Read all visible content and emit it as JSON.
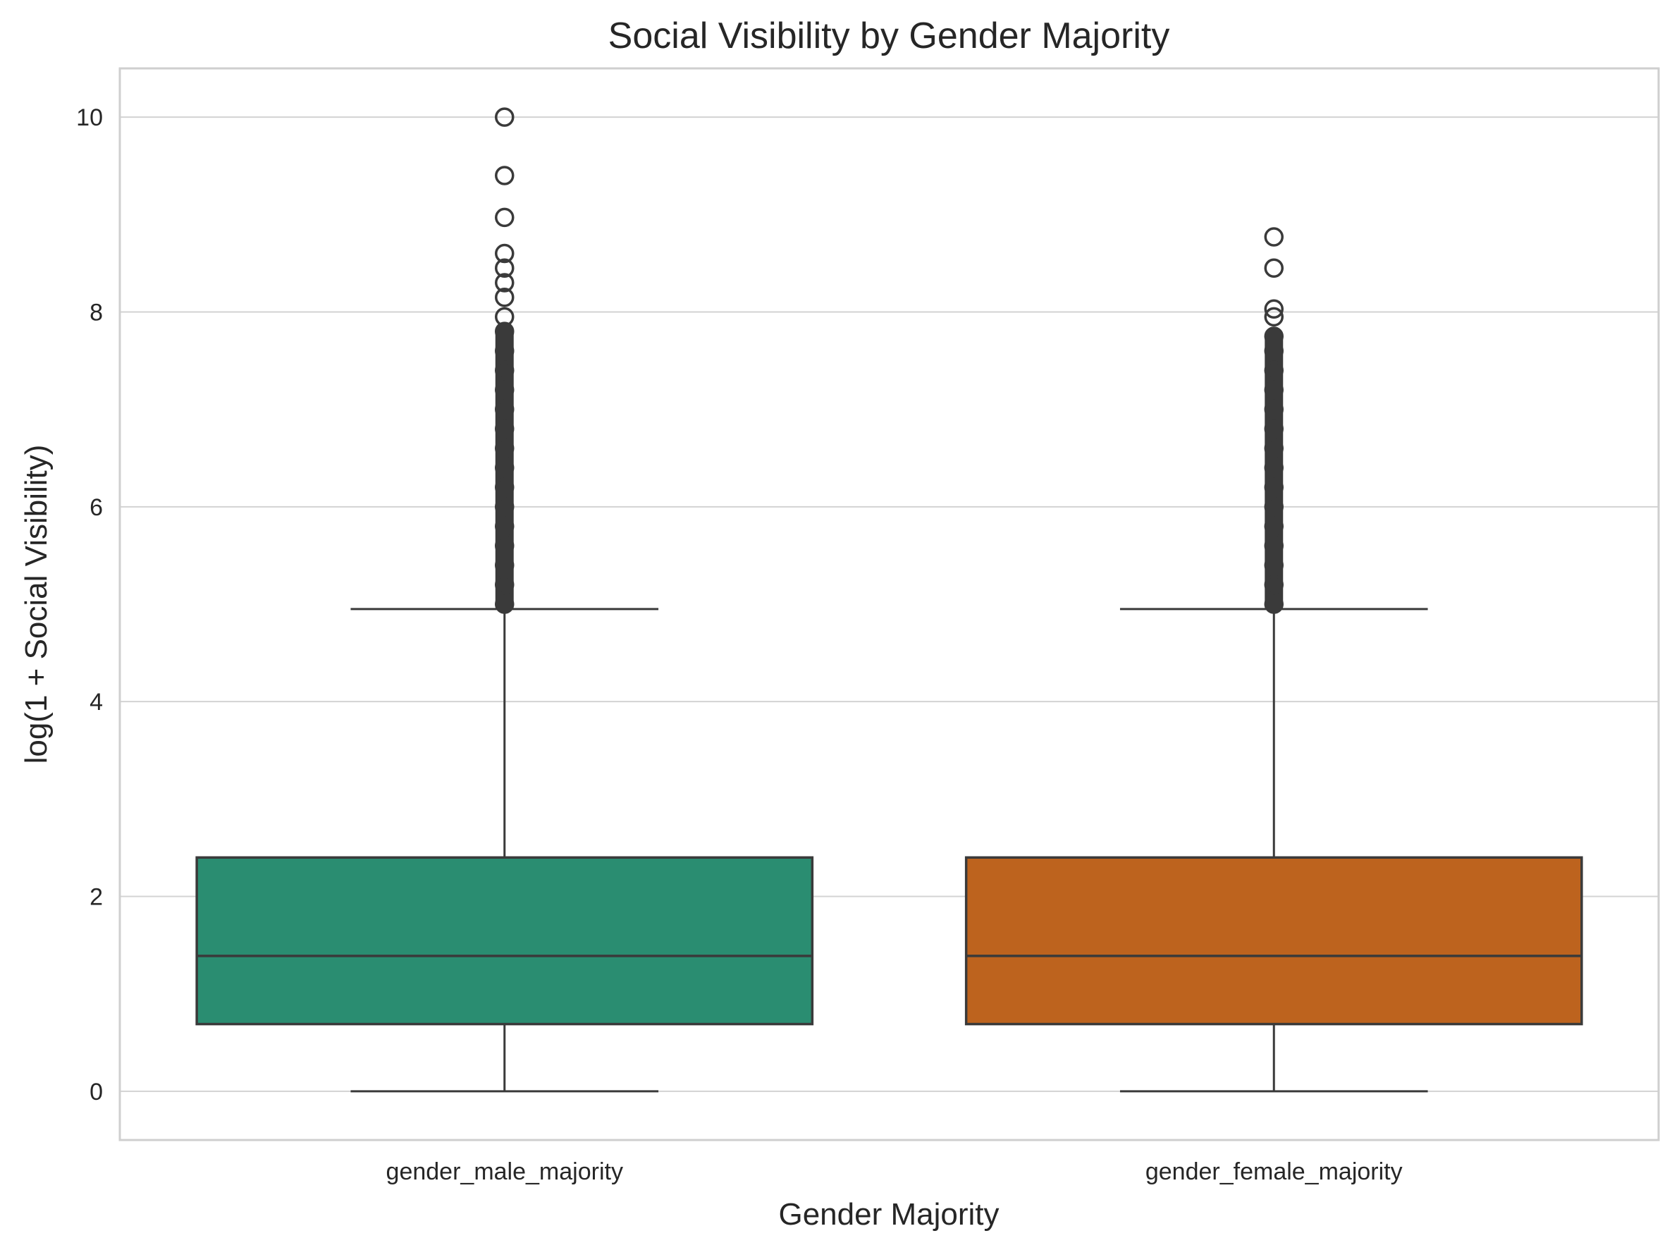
{
  "chart_data": {
    "type": "box",
    "title": "Social Visibility by Gender Majority",
    "xlabel": "Gender Majority",
    "ylabel": "log(1 + Social Visibility)",
    "ylim": [
      -0.5,
      10.5
    ],
    "yticks": [
      0,
      2,
      4,
      6,
      8,
      10
    ],
    "ytick_labels": [
      "0",
      "2",
      "4",
      "6",
      "8",
      "10"
    ],
    "grid": true,
    "categories": [
      "gender_male_majority",
      "gender_female_majority"
    ],
    "colors": {
      "gender_male_majority": "#2a8d71",
      "gender_female_majority": "#bd631e",
      "outline": "#3a3a3a",
      "grid": "#d3d3d3",
      "frame": "#cfcfcf"
    },
    "boxes": [
      {
        "category": "gender_male_majority",
        "whisker_low": 0,
        "q1": 0.69,
        "median": 1.39,
        "q3": 2.4,
        "whisker_high": 4.95,
        "outliers": [
          5.0,
          5.2,
          5.4,
          5.6,
          5.8,
          6.0,
          6.2,
          6.4,
          6.6,
          6.8,
          7.0,
          7.2,
          7.4,
          7.6,
          7.8,
          7.95,
          8.15,
          8.3,
          8.45,
          8.6,
          8.97,
          9.4,
          10.0
        ]
      },
      {
        "category": "gender_female_majority",
        "whisker_low": 0,
        "q1": 0.69,
        "median": 1.39,
        "q3": 2.4,
        "whisker_high": 4.95,
        "outliers": [
          5.0,
          5.2,
          5.4,
          5.6,
          5.8,
          6.0,
          6.2,
          6.4,
          6.6,
          6.8,
          7.0,
          7.2,
          7.4,
          7.6,
          7.75,
          7.95,
          8.03,
          8.45,
          8.77
        ]
      }
    ]
  }
}
